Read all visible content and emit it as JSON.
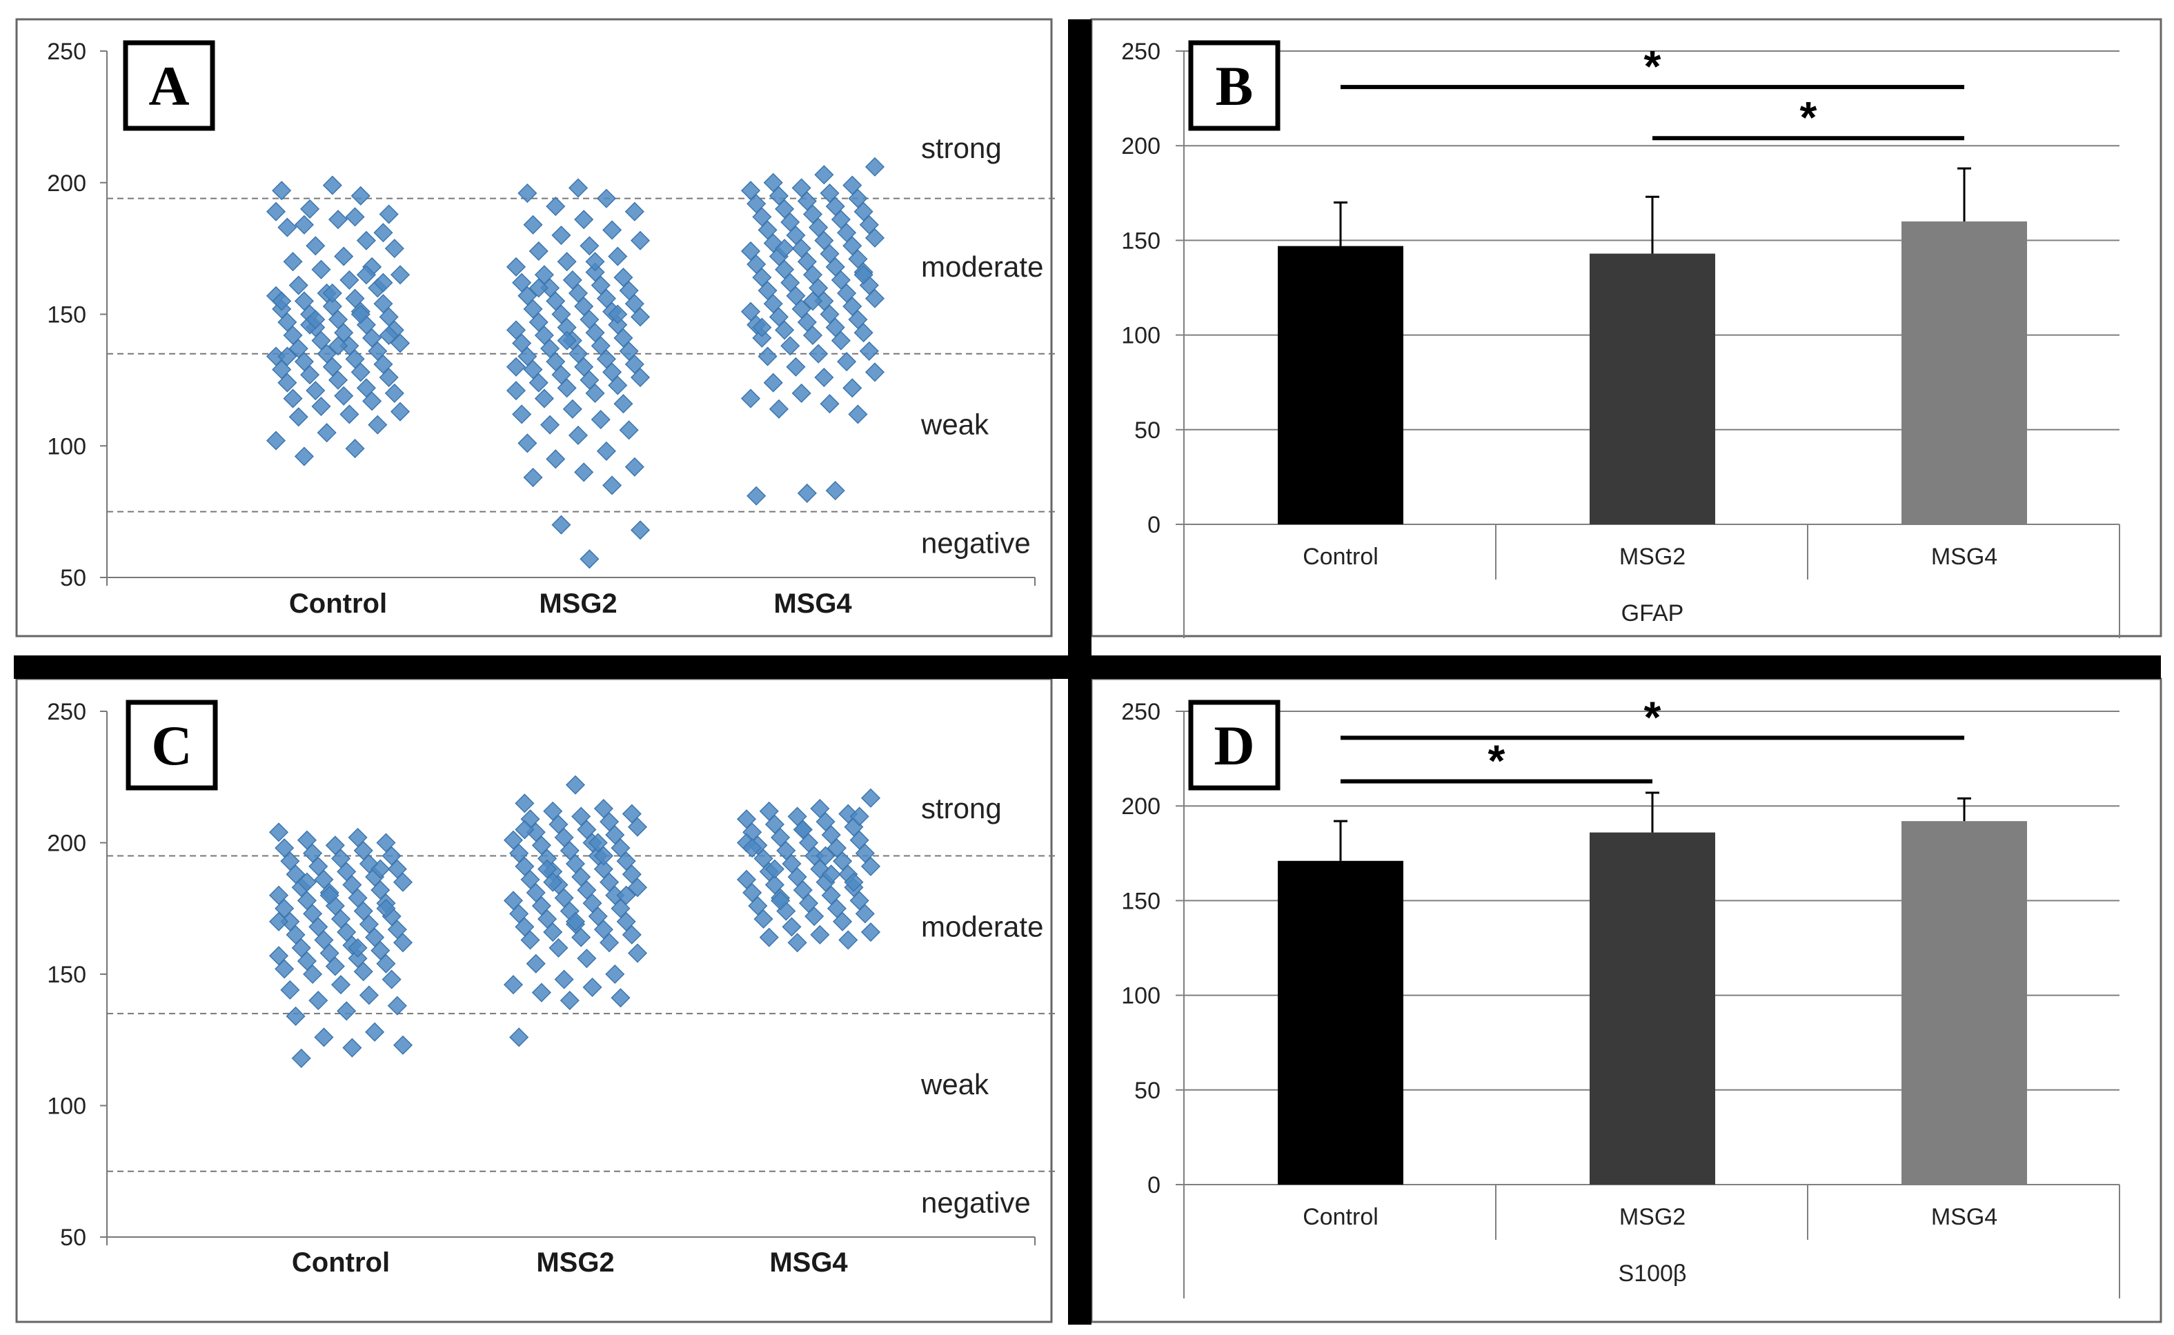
{
  "chart_data": [
    {
      "panel": "A",
      "type": "scatter",
      "categories": [
        "Control",
        "MSG2",
        "MSG4"
      ],
      "ylim": [
        50,
        250
      ],
      "yticks": [
        50,
        100,
        150,
        200,
        250
      ],
      "thresholds": [
        75,
        135,
        194
      ],
      "bands": [
        {
          "label": "strong",
          "y": 213
        },
        {
          "label": "moderate",
          "y": 168
        },
        {
          "label": "weak",
          "y": 108
        },
        {
          "label": "negative",
          "y": 63
        }
      ],
      "marker_color": "#4f89c3",
      "series": [
        {
          "name": "Control",
          "values": [
            189,
            187,
            184,
            181,
            199,
            197,
            195,
            190,
            188,
            186,
            183,
            178,
            176,
            175,
            172,
            170,
            168,
            167,
            165,
            163,
            161,
            160,
            158,
            157,
            156,
            155,
            154,
            153,
            152,
            151,
            150,
            149,
            148,
            147,
            146,
            145,
            144,
            143,
            142,
            141,
            140,
            139,
            138,
            137,
            136,
            135,
            134,
            133,
            132,
            131,
            130,
            129,
            128,
            127,
            126,
            125,
            124,
            122,
            121,
            120,
            119,
            118,
            117,
            115,
            113,
            112,
            111,
            108,
            105,
            102,
            99,
            96,
            162,
            158,
            155,
            150,
            146,
            142,
            138,
            134,
            165,
            148
          ]
        },
        {
          "name": "MSG2",
          "values": [
            198,
            196,
            194,
            191,
            189,
            186,
            184,
            182,
            180,
            178,
            176,
            174,
            172,
            170,
            168,
            166,
            165,
            164,
            163,
            162,
            161,
            160,
            159,
            158,
            157,
            156,
            155,
            154,
            153,
            152,
            151,
            150,
            149,
            148,
            147,
            146,
            145,
            144,
            143,
            142,
            141,
            140,
            139,
            138,
            137,
            136,
            135,
            134,
            133,
            132,
            131,
            130,
            129,
            128,
            127,
            126,
            125,
            124,
            123,
            122,
            121,
            120,
            118,
            116,
            114,
            112,
            110,
            108,
            106,
            104,
            101,
            98,
            95,
            92,
            90,
            88,
            85,
            70,
            68,
            57,
            160,
            150,
            140,
            130,
            170
          ]
        },
        {
          "name": "MSG4",
          "values": [
            206,
            203,
            200,
            199,
            198,
            197,
            196,
            195,
            194,
            193,
            192,
            191,
            190,
            189,
            188,
            187,
            186,
            185,
            184,
            183,
            182,
            181,
            180,
            179,
            178,
            177,
            176,
            175,
            174,
            173,
            172,
            171,
            170,
            169,
            168,
            167,
            166,
            165,
            164,
            163,
            162,
            161,
            160,
            159,
            158,
            157,
            156,
            155,
            154,
            153,
            152,
            151,
            150,
            149,
            148,
            147,
            146,
            145,
            144,
            143,
            142,
            141,
            140,
            138,
            136,
            135,
            134,
            132,
            130,
            128,
            126,
            124,
            122,
            120,
            118,
            116,
            114,
            112,
            82,
            81,
            83,
            175,
            165,
            155,
            145
          ]
        }
      ]
    },
    {
      "panel": "B",
      "type": "bar",
      "categories": [
        "Control",
        "MSG2",
        "MSG4"
      ],
      "values": [
        147,
        143,
        160
      ],
      "errors": [
        23,
        30,
        28
      ],
      "xlabel": "GFAP",
      "ylim": [
        0,
        250
      ],
      "yticks": [
        0,
        50,
        100,
        150,
        200,
        250
      ],
      "colors": [
        "#000000",
        "#3a3a3a",
        "#7f7f7f"
      ],
      "significance": [
        {
          "from": "Control",
          "to": "MSG4",
          "label": "*"
        },
        {
          "from": "MSG2",
          "to": "MSG4",
          "label": "*"
        }
      ]
    },
    {
      "panel": "C",
      "type": "scatter",
      "categories": [
        "Control",
        "MSG2",
        "MSG4"
      ],
      "ylim": [
        50,
        250
      ],
      "yticks": [
        50,
        100,
        150,
        200,
        250
      ],
      "thresholds": [
        75,
        135,
        195
      ],
      "bands": [
        {
          "label": "strong",
          "y": 213
        },
        {
          "label": "moderate",
          "y": 168
        },
        {
          "label": "weak",
          "y": 108
        },
        {
          "label": "negative",
          "y": 63
        }
      ],
      "marker_color": "#4f89c3",
      "series": [
        {
          "name": "Control",
          "values": [
            204,
            202,
            201,
            200,
            199,
            198,
            197,
            196,
            195,
            194,
            193,
            192,
            191,
            190,
            189,
            188,
            187,
            186,
            185,
            184,
            183,
            182,
            181,
            180,
            179,
            178,
            177,
            176,
            175,
            174,
            173,
            172,
            171,
            170,
            169,
            168,
            167,
            166,
            165,
            164,
            163,
            162,
            161,
            160,
            159,
            158,
            157,
            156,
            155,
            154,
            153,
            152,
            151,
            150,
            148,
            146,
            144,
            142,
            140,
            138,
            136,
            134,
            128,
            126,
            123,
            122,
            118,
            190,
            180,
            170,
            160,
            185,
            175
          ]
        },
        {
          "name": "MSG2",
          "values": [
            222,
            215,
            213,
            212,
            211,
            210,
            209,
            208,
            207,
            206,
            205,
            204,
            203,
            202,
            201,
            200,
            199,
            198,
            197,
            196,
            195,
            194,
            193,
            192,
            191,
            190,
            189,
            188,
            187,
            186,
            185,
            184,
            183,
            182,
            181,
            180,
            179,
            178,
            177,
            176,
            175,
            174,
            173,
            172,
            171,
            170,
            169,
            168,
            167,
            166,
            165,
            164,
            163,
            162,
            160,
            158,
            156,
            154,
            150,
            148,
            146,
            145,
            143,
            141,
            140,
            126,
            200,
            190,
            180,
            170,
            205,
            195,
            185
          ]
        },
        {
          "name": "MSG4",
          "values": [
            217,
            213,
            212,
            211,
            210,
            209,
            208,
            207,
            206,
            205,
            204,
            203,
            202,
            201,
            200,
            199,
            198,
            197,
            196,
            195,
            194,
            193,
            192,
            191,
            190,
            189,
            188,
            187,
            186,
            185,
            184,
            183,
            182,
            181,
            180,
            179,
            178,
            177,
            176,
            175,
            174,
            173,
            172,
            171,
            170,
            168,
            166,
            165,
            164,
            163,
            162,
            200,
            195,
            190,
            185,
            205,
            198,
            188,
            178,
            210
          ]
        }
      ]
    },
    {
      "panel": "D",
      "type": "bar",
      "categories": [
        "Control",
        "MSG2",
        "MSG4"
      ],
      "values": [
        171,
        186,
        192
      ],
      "errors": [
        21,
        21,
        12
      ],
      "xlabel": "S100β",
      "ylim": [
        0,
        250
      ],
      "yticks": [
        0,
        50,
        100,
        150,
        200,
        250
      ],
      "colors": [
        "#000000",
        "#3a3a3a",
        "#7f7f7f"
      ],
      "significance": [
        {
          "from": "Control",
          "to": "MSG4",
          "label": "*"
        },
        {
          "from": "Control",
          "to": "MSG2",
          "label": "*"
        }
      ]
    }
  ]
}
